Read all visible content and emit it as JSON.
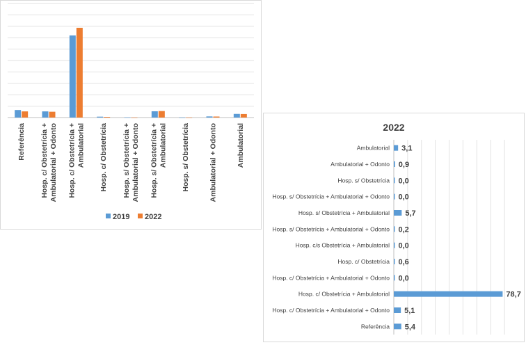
{
  "chart_data": [
    {
      "type": "bar",
      "orientation": "vertical",
      "title": "",
      "xlabel": "",
      "ylabel": "",
      "ylim": [
        0,
        100
      ],
      "grid": true,
      "legend_position": "bottom",
      "categories": [
        "Referência",
        "Hosp. c/ Obstetrícia + Ambulatorial + Odonto",
        "Hosp. c/ Obstetrícia + Ambulatorial",
        "Hosp. c/ Obstetrícia",
        "Hosp. s/ Obstetrícia + Ambulatorial + Odonto",
        "Hosp. s/ Obstetrícia + Ambulatorial",
        "Hosp. s/ Obstetrícia",
        "Ambulatorial + Odonto",
        "Ambulatorial"
      ],
      "category_lines": [
        [
          "Referência"
        ],
        [
          "Hosp. c/ Obstetrícia +",
          "Ambulatorial + Odonto"
        ],
        [
          "Hosp. c/ Obstetrícia +",
          "Ambulatorial"
        ],
        [
          "Hosp. c/ Obstetrícia"
        ],
        [
          "Hosp. s/ Obstetrícia +",
          "Ambulatorial + Odonto"
        ],
        [
          "Hosp. s/ Obstetrícia +",
          "Ambulatorial"
        ],
        [
          "Hosp. s/ Obstetrícia"
        ],
        [
          "Ambulatorial + Odonto"
        ],
        [
          "Ambulatorial"
        ]
      ],
      "series": [
        {
          "name": "2019",
          "color": "#5b9bd5",
          "values": [
            6.6,
            5.4,
            72.0,
            0.8,
            0.2,
            5.5,
            0.0,
            1.0,
            3.2
          ]
        },
        {
          "name": "2022",
          "color": "#ed7d31",
          "values": [
            5.4,
            5.1,
            78.7,
            0.6,
            0.0,
            5.7,
            0.0,
            0.9,
            3.1
          ]
        }
      ]
    },
    {
      "type": "bar",
      "orientation": "horizontal",
      "title": "2022",
      "xlabel": "",
      "ylabel": "",
      "xlim": [
        0,
        80
      ],
      "grid": true,
      "categories": [
        "Ambulatorial",
        "Ambulatorial + Odonto",
        "Hosp. s/ Obstetrícia",
        "Hosp. s/ Obstetrícia + Ambulatorial + Odonto",
        "Hosp. s/ Obstetrícia + Ambulatorial",
        "Hosp. s/ Obstetrícia + Ambulatorial + Odonto",
        "Hosp. c/s Obstetrícia + Ambulatorial",
        "Hosp. c/ Obstetrícia",
        "Hosp. c/ Obstetrícia + Ambulatorial + Odonto",
        "Hosp. c/ Obstetrícia + Ambulatorial",
        "Hosp. c/ Obstetrícia + Ambulatorial + Odonto",
        "Referência"
      ],
      "series": [
        {
          "name": "",
          "color": "#5b9bd5",
          "values": [
            3.1,
            0.9,
            0.0,
            0.0,
            5.7,
            0.2,
            0.0,
            0.6,
            0.0,
            78.7,
            5.1,
            5.4
          ],
          "labels": [
            "3,1",
            "0,9",
            "0,0",
            "0,0",
            "5,7",
            "0,2",
            "0,0",
            "0,6",
            "0,0",
            "78,7",
            "5,1",
            "5,4"
          ]
        }
      ]
    }
  ]
}
